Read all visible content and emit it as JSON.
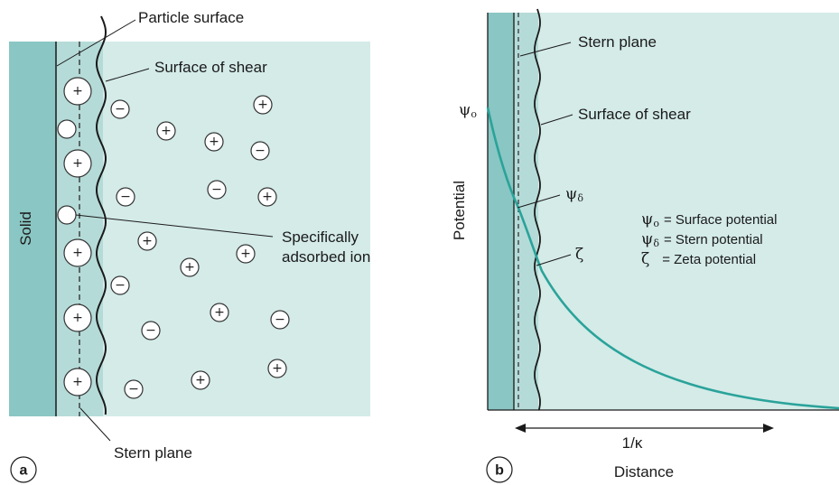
{
  "panel_a": {
    "letter": "a",
    "solid_label": "Solid",
    "particle_surface_label": "Particle surface",
    "surface_of_shear_label": "Surface of shear",
    "specifically_adsorbed_line1": "Specifically",
    "specifically_adsorbed_line2": "adsorbed ion",
    "stern_plane_label": "Stern plane"
  },
  "panel_b": {
    "letter": "b",
    "stern_plane_label": "Stern plane",
    "surface_of_shear_label": "Surface of shear",
    "y_axis_label": "Potential",
    "x_axis_label": "Distance",
    "debye_length_label": "1/κ",
    "psi_o_symbol": "ψ",
    "psi_o_sub": "o",
    "psi_delta_symbol": "ψ",
    "psi_delta_sub": "δ",
    "zeta_symbol": "ζ",
    "legend": [
      {
        "symbol": "ψ",
        "sub": "o",
        "text": "= Surface potential"
      },
      {
        "symbol": "ψ",
        "sub": "δ",
        "text": "= Stern potential"
      },
      {
        "symbol": "ζ",
        "sub": "",
        "text": "= Zeta potential"
      }
    ]
  },
  "colors": {
    "solid": "#8ac6c3",
    "stern_layer": "#b5dbd8",
    "solution": "#d4ebe8",
    "curve": "#2aa39a",
    "line": "#1a1a1a"
  }
}
